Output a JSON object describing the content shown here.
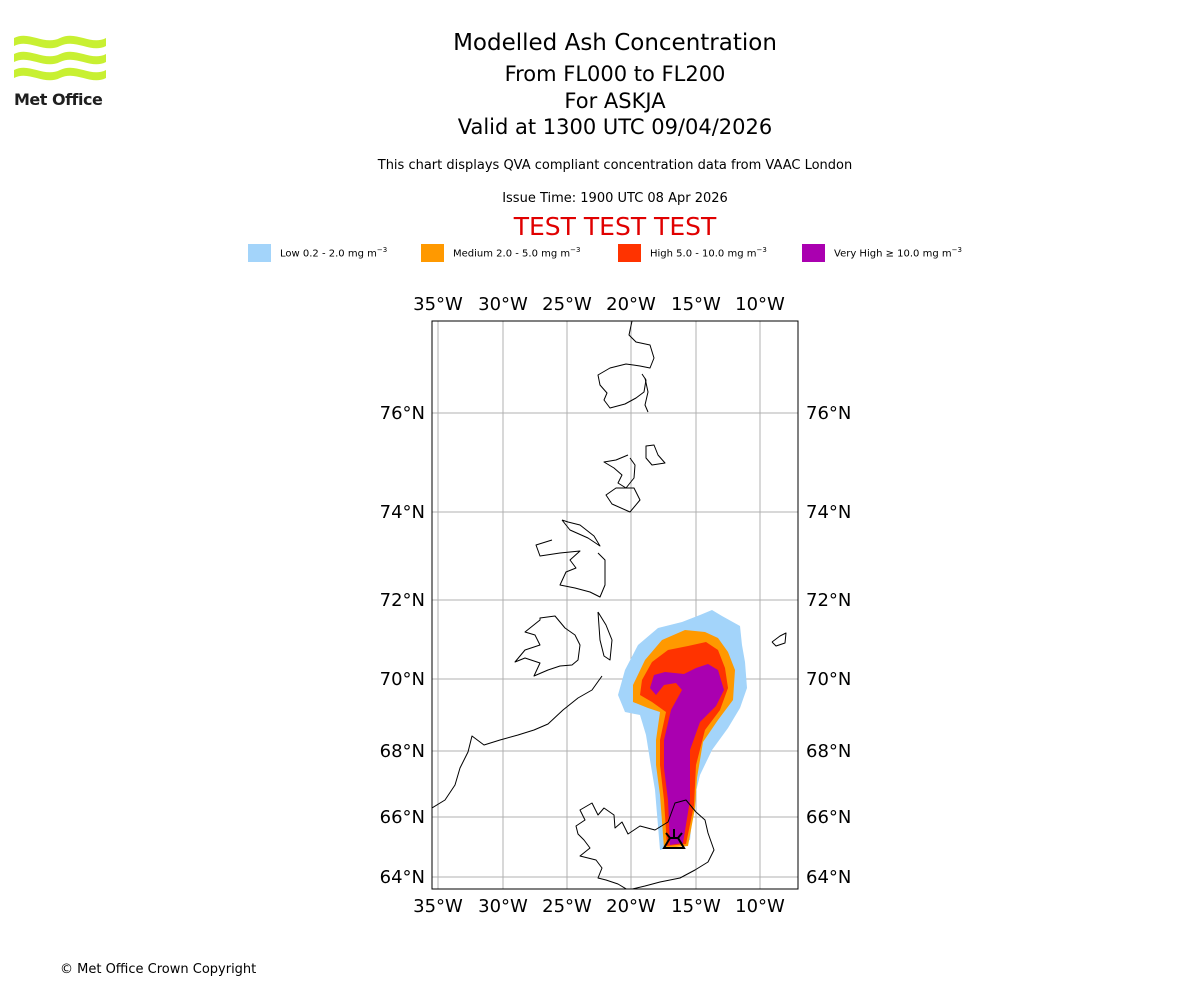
{
  "logo": {
    "text": "Met Office",
    "color": "#c8f032"
  },
  "header": {
    "title": "Modelled Ash Concentration",
    "flight_levels": "From FL000 to FL200",
    "volcano": "For ASKJA",
    "valid_time": "Valid at 1300 UTC 09/04/2026",
    "description": "This chart displays QVA compliant concentration data from VAAC London",
    "issue_time": "Issue Time: 1900 UTC 08 Apr 2026",
    "test_banner": "TEST TEST TEST"
  },
  "legend": {
    "unit_exponent": "−3",
    "items": [
      {
        "label": "Low 0.2 - 2.0 mg m",
        "color": "#a3d4fa"
      },
      {
        "label": "Medium 2.0 - 5.0 mg m",
        "color": "#ff9900"
      },
      {
        "label": "High 5.0 - 10.0 mg m",
        "color": "#ff3300"
      },
      {
        "label": "Very High  ≥  10.0 mg m",
        "color": "#aa00b0"
      }
    ]
  },
  "map": {
    "lon_labels": [
      "35°W",
      "30°W",
      "25°W",
      "20°W",
      "15°W",
      "10°W"
    ],
    "lat_labels": [
      "76°N",
      "74°N",
      "72°N",
      "70°N",
      "68°N",
      "66°N",
      "64°N"
    ],
    "volcano_symbol": "volcano-icon"
  },
  "footer": {
    "copyright": "© Met Office Crown Copyright"
  }
}
